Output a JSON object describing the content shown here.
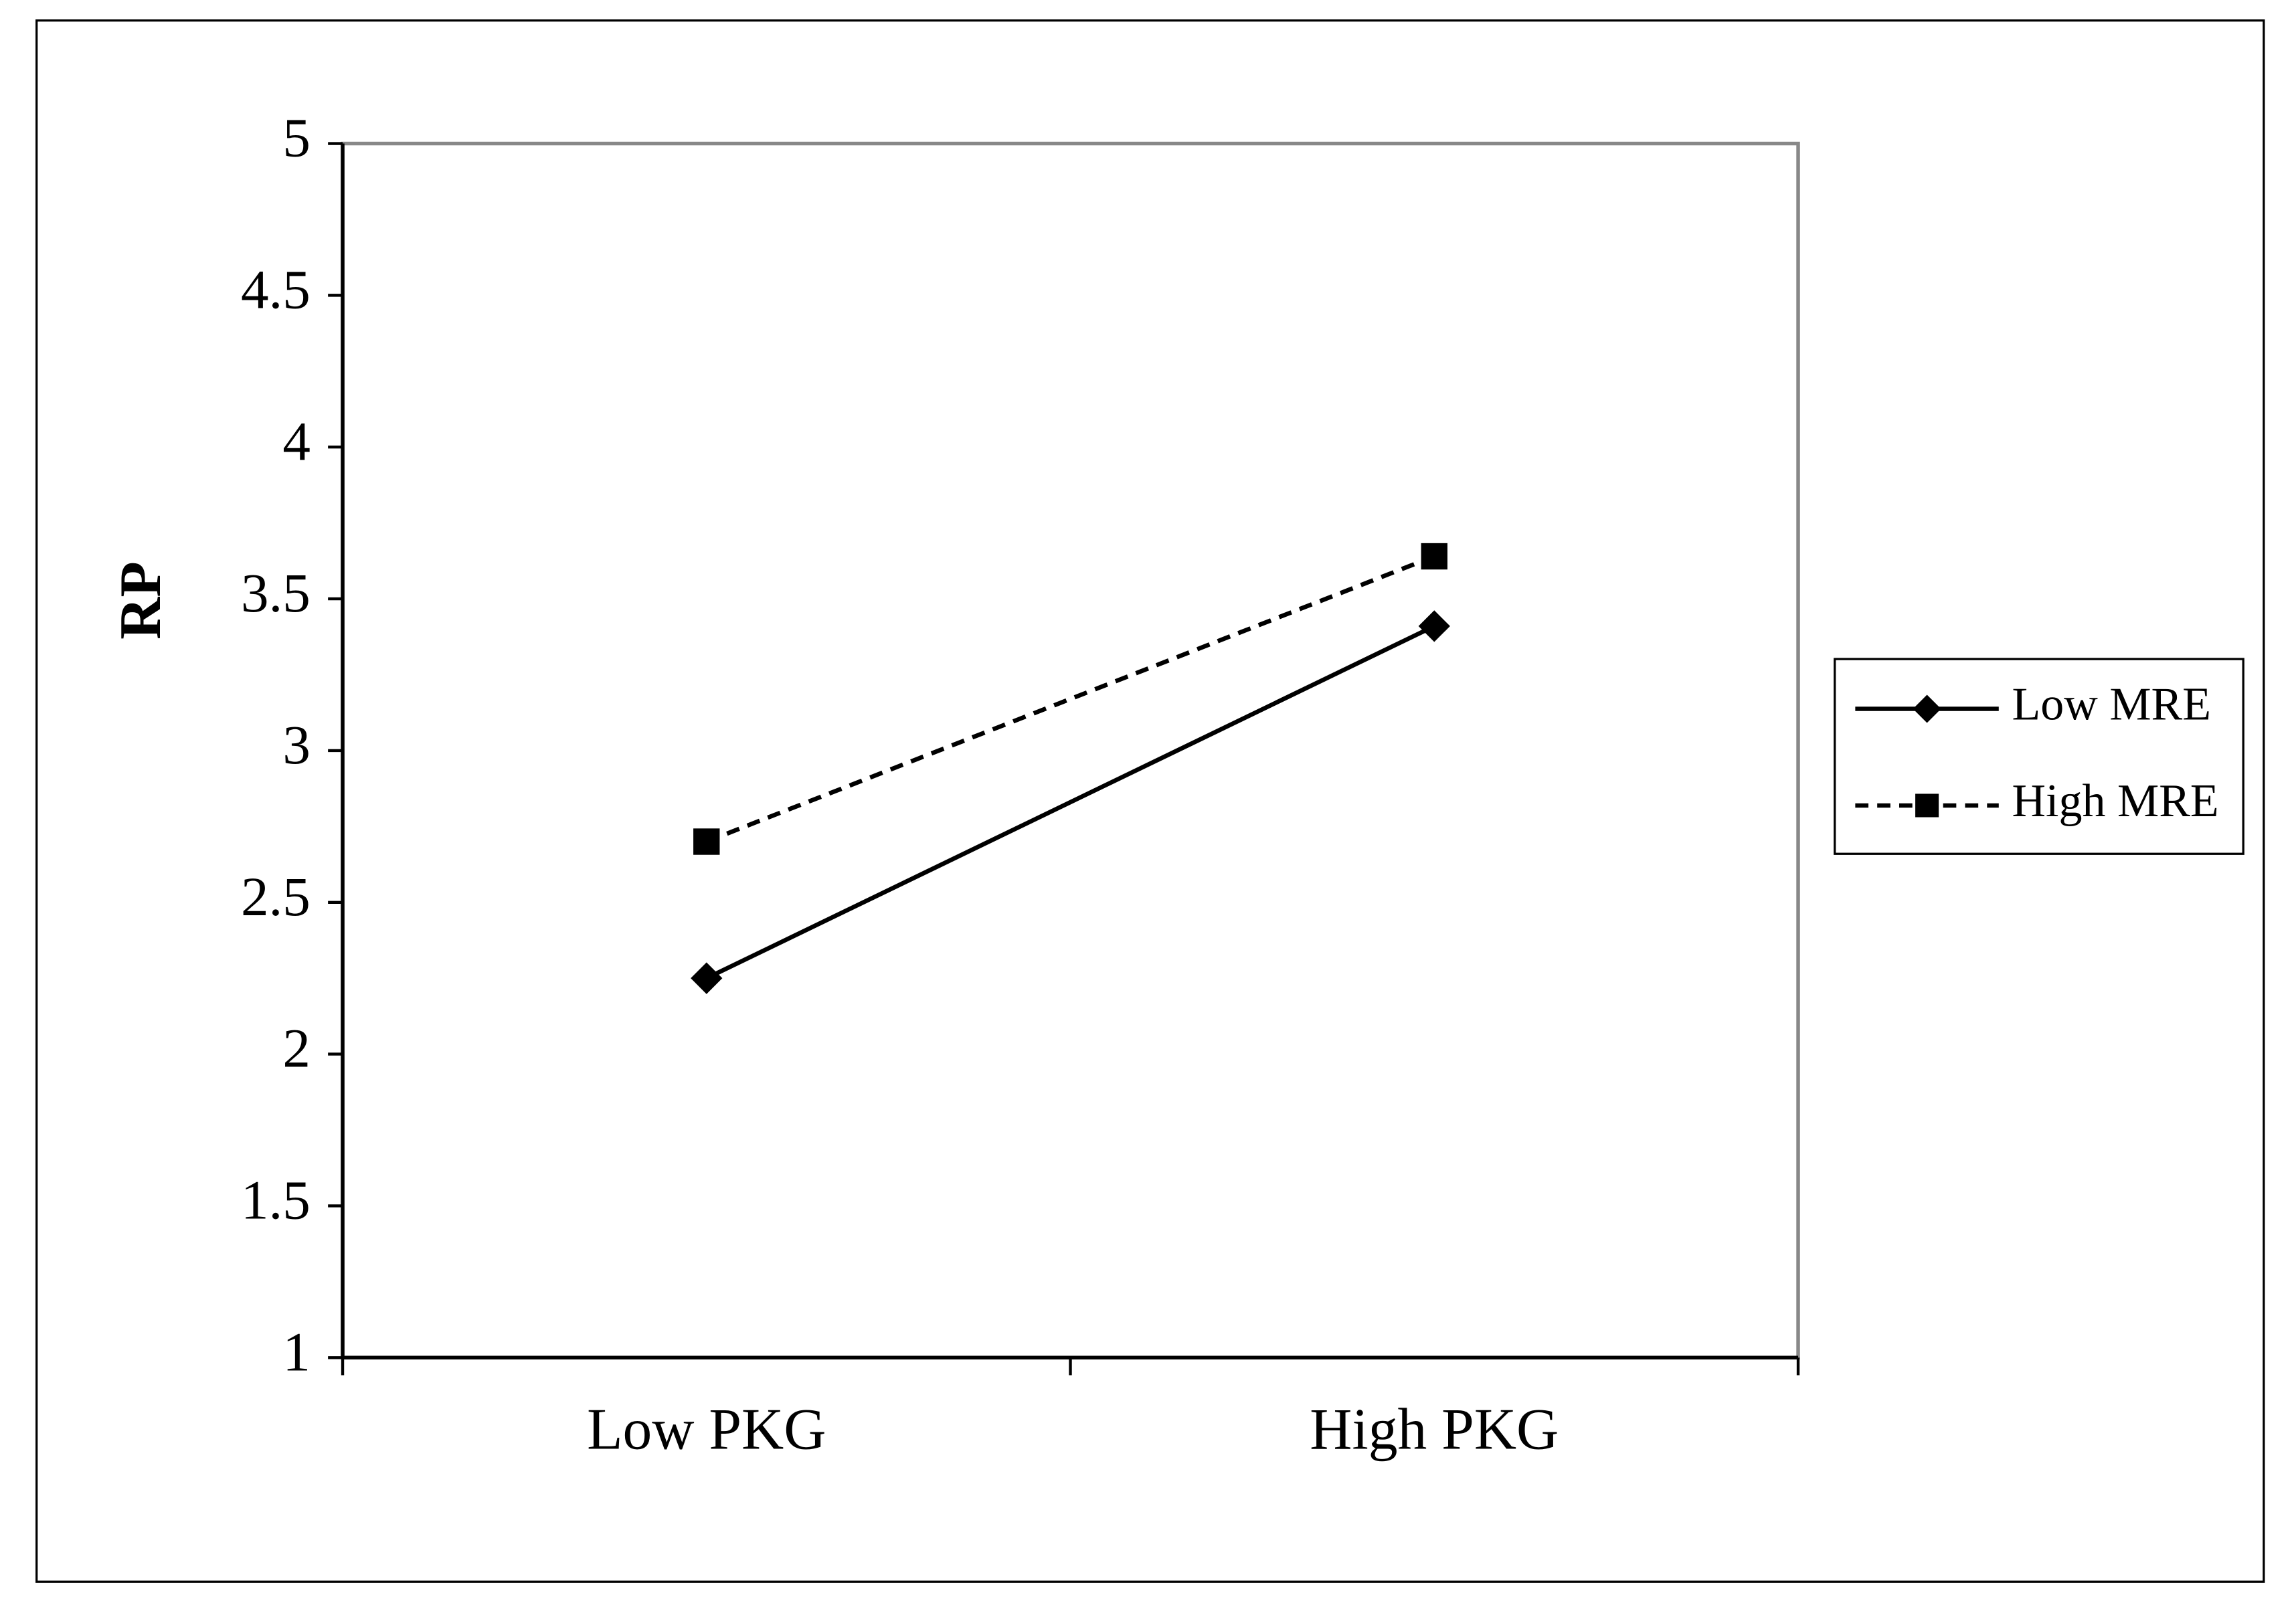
{
  "chart_data": {
    "type": "line",
    "y_label": "RP",
    "categories": [
      "Low PKG",
      "High PKG"
    ],
    "series": [
      {
        "name": "Low MRE",
        "color": "#000000",
        "marker": "diamond",
        "dash": "solid",
        "values": [
          2.25,
          3.41
        ]
      },
      {
        "name": "High MRE",
        "color": "#000000",
        "marker": "square",
        "dash": "dashed",
        "values": [
          2.7,
          3.64
        ]
      }
    ],
    "ylim": [
      1,
      5
    ],
    "yticks": [
      1,
      1.5,
      2,
      2.5,
      3,
      3.5,
      4,
      4.5,
      5
    ],
    "grid": false,
    "legend": "right"
  }
}
